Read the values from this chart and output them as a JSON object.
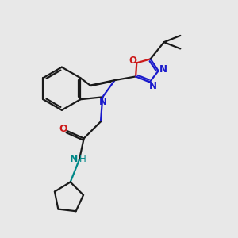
{
  "bg_color": "#e8e8e8",
  "bond_color": "#1a1a1a",
  "N_color": "#1a1acc",
  "O_color": "#cc1a1a",
  "NH_color": "#008888",
  "lw": 1.6,
  "fig_size": [
    3.0,
    3.0
  ],
  "dpi": 100,
  "xlim": [
    0,
    10
  ],
  "ylim": [
    0,
    10
  ]
}
